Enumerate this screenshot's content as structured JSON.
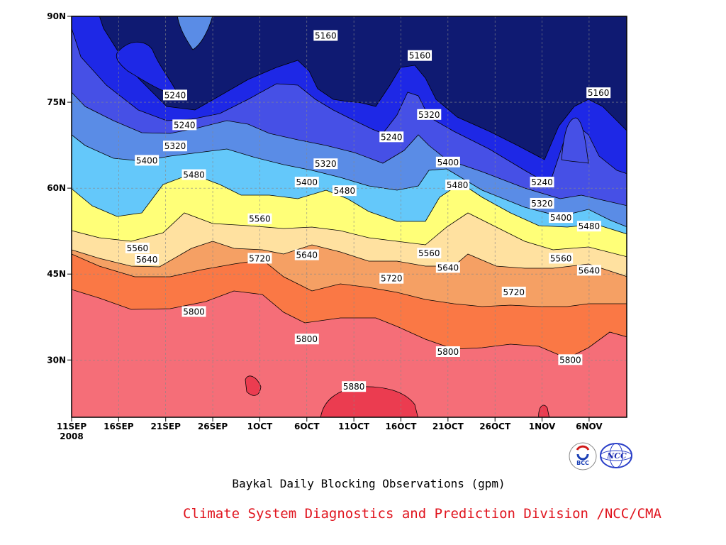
{
  "chart_data": {
    "type": "contour",
    "title": "",
    "caption": "Baykal Daily Blocking Observations (gpm)",
    "credit": "Climate System Diagnostics and Prediction Division /NCC/CMA",
    "y_ticks": [
      "30N",
      "45N",
      "60N",
      "75N",
      "90N"
    ],
    "x_ticks": [
      "11SEP",
      "16SEP",
      "21SEP",
      "26SEP",
      "1OCT",
      "6OCT",
      "11OCT",
      "16OCT",
      "21OCT",
      "26OCT",
      "1NOV",
      "6NOV"
    ],
    "x_start_year": "2008",
    "ylim_deg_lat": [
      20,
      90
    ],
    "x_range": [
      "2008-09-11",
      "2008-11-09"
    ],
    "contour_levels": [
      5160,
      5240,
      5320,
      5400,
      5480,
      5560,
      5640,
      5720,
      5800,
      5880
    ],
    "fill_colors": [
      "#0f1a72",
      "#1e28e6",
      "#4650e6",
      "#5a8ce6",
      "#64c8fa",
      "#ffff78",
      "#ffe1a0",
      "#f5a064",
      "#fa7845",
      "#f56e78",
      "#eb3c50"
    ],
    "contour_labels": [
      {
        "text": "5160",
        "date": "2008-10-08",
        "lat": 86.6
      },
      {
        "text": "5160",
        "date": "2008-10-18",
        "lat": 83.1
      },
      {
        "text": "5160",
        "date": "2008-11-06",
        "lat": 76.6
      },
      {
        "text": "5240",
        "date": "2008-09-22",
        "lat": 76.2
      },
      {
        "text": "5240",
        "date": "2008-09-23",
        "lat": 71.0
      },
      {
        "text": "5240",
        "date": "2008-10-15",
        "lat": 68.9
      },
      {
        "text": "5240",
        "date": "2008-10-31",
        "lat": 61.0
      },
      {
        "text": "5320",
        "date": "2008-09-22",
        "lat": 67.3
      },
      {
        "text": "5320",
        "date": "2008-10-08",
        "lat": 64.2
      },
      {
        "text": "5320",
        "date": "2008-10-19",
        "lat": 72.8
      },
      {
        "text": "5320",
        "date": "2008-10-31",
        "lat": 57.3
      },
      {
        "text": "5400",
        "date": "2008-09-19",
        "lat": 64.8
      },
      {
        "text": "5400",
        "date": "2008-10-06",
        "lat": 61.0
      },
      {
        "text": "5400",
        "date": "2008-10-21",
        "lat": 64.5
      },
      {
        "text": "5400",
        "date": "2008-11-02",
        "lat": 54.8
      },
      {
        "text": "5480",
        "date": "2008-09-24",
        "lat": 62.3
      },
      {
        "text": "5480",
        "date": "2008-10-10",
        "lat": 59.5
      },
      {
        "text": "5480",
        "date": "2008-10-22",
        "lat": 60.5
      },
      {
        "text": "5480",
        "date": "2008-11-05",
        "lat": 53.3
      },
      {
        "text": "5560",
        "date": "2008-09-18",
        "lat": 49.5
      },
      {
        "text": "5560",
        "date": "2008-10-01",
        "lat": 54.6
      },
      {
        "text": "5560",
        "date": "2008-10-19",
        "lat": 48.6
      },
      {
        "text": "5560",
        "date": "2008-11-02",
        "lat": 47.7
      },
      {
        "text": "5640",
        "date": "2008-09-19",
        "lat": 47.5
      },
      {
        "text": "5640",
        "date": "2008-10-06",
        "lat": 48.3
      },
      {
        "text": "5640",
        "date": "2008-10-21",
        "lat": 46.1
      },
      {
        "text": "5640",
        "date": "2008-11-05",
        "lat": 45.6
      },
      {
        "text": "5720",
        "date": "2008-10-01",
        "lat": 47.7
      },
      {
        "text": "5720",
        "date": "2008-10-15",
        "lat": 44.2
      },
      {
        "text": "5720",
        "date": "2008-10-28",
        "lat": 41.8
      },
      {
        "text": "5800",
        "date": "2008-09-24",
        "lat": 38.4
      },
      {
        "text": "5800",
        "date": "2008-10-06",
        "lat": 33.6
      },
      {
        "text": "5800",
        "date": "2008-10-21",
        "lat": 31.4
      },
      {
        "text": "5800",
        "date": "2008-11-03",
        "lat": 30.0
      },
      {
        "text": "5880",
        "date": "2008-10-11",
        "lat": 25.3
      }
    ]
  },
  "logos": {
    "bcc": {
      "text": "BCC",
      "icon": "bcc-logo"
    },
    "ncc": {
      "text": "NCC",
      "icon": "ncc-logo"
    }
  }
}
